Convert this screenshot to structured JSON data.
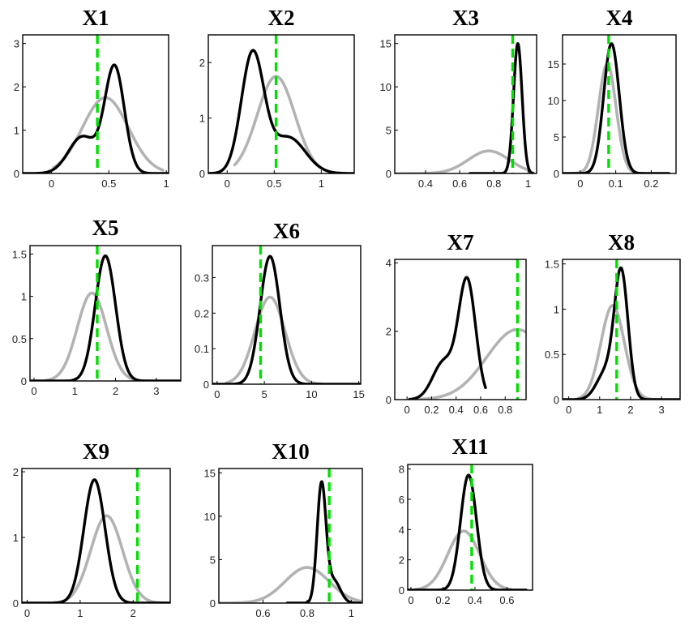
{
  "colors": {
    "prior": "#b3b3b3",
    "posterior": "#000000",
    "true_value": "#00e000"
  },
  "chart_data": [
    {
      "type": "line",
      "title": "X1",
      "xlim": [
        -0.25,
        1.02
      ],
      "ylim": [
        0,
        3.2
      ],
      "xticks": [
        {
          "v": 0,
          "label": "0"
        },
        {
          "v": 0.5,
          "label": "0.5"
        },
        {
          "v": 1,
          "label": "1"
        }
      ],
      "yticks": [
        {
          "v": 0,
          "label": "0"
        },
        {
          "v": 1,
          "label": "1"
        },
        {
          "v": 2,
          "label": "2"
        },
        {
          "v": 3,
          "label": "3"
        }
      ],
      "vline": 0.4,
      "series": [
        {
          "role": "prior",
          "components": [
            {
              "m": 0.47,
              "s": 0.2,
              "a": 1.75
            }
          ],
          "range": [
            0.02,
            0.97
          ]
        },
        {
          "role": "posterior",
          "components": [
            {
              "m": 0.55,
              "s": 0.085,
              "a": 2.45
            },
            {
              "m": 0.27,
              "s": 0.12,
              "a": 0.85
            }
          ],
          "range": [
            -0.25,
            1.02
          ]
        }
      ]
    },
    {
      "type": "line",
      "title": "X2",
      "xlim": [
        -0.2,
        1.35
      ],
      "ylim": [
        0,
        2.5
      ],
      "xticks": [
        {
          "v": 0,
          "label": "0"
        },
        {
          "v": 0.5,
          "label": "0.5"
        },
        {
          "v": 1,
          "label": "1"
        }
      ],
      "yticks": [
        {
          "v": 0,
          "label": "0"
        },
        {
          "v": 1,
          "label": "1"
        },
        {
          "v": 2,
          "label": "2"
        }
      ],
      "vline": 0.52,
      "series": [
        {
          "role": "prior",
          "components": [
            {
              "m": 0.52,
              "s": 0.2,
              "a": 1.75
            }
          ],
          "range": [
            0.08,
            1.0
          ]
        },
        {
          "role": "posterior",
          "components": [
            {
              "m": 0.27,
              "s": 0.12,
              "a": 2.15
            },
            {
              "m": 0.65,
              "s": 0.18,
              "a": 0.65
            }
          ],
          "range": [
            -0.2,
            1.35
          ]
        }
      ]
    },
    {
      "type": "line",
      "title": "X3",
      "xlim": [
        0.22,
        1.05
      ],
      "ylim": [
        0,
        16
      ],
      "xticks": [
        {
          "v": 0.4,
          "label": "0.4"
        },
        {
          "v": 0.6,
          "label": "0.6"
        },
        {
          "v": 0.8,
          "label": "0.8"
        },
        {
          "v": 1,
          "label": "1"
        }
      ],
      "yticks": [
        {
          "v": 0,
          "label": "0"
        },
        {
          "v": 5,
          "label": "5"
        },
        {
          "v": 10,
          "label": "10"
        },
        {
          "v": 15,
          "label": "15"
        }
      ],
      "vline": 0.91,
      "series": [
        {
          "role": "prior",
          "components": [
            {
              "m": 0.77,
              "s": 0.12,
              "a": 2.6
            }
          ],
          "range": [
            0.22,
            1.0
          ]
        },
        {
          "role": "posterior",
          "components": [
            {
              "m": 0.94,
              "s": 0.025,
              "a": 15.0
            }
          ],
          "range": [
            0.66,
            1.03
          ]
        }
      ]
    },
    {
      "type": "line",
      "title": "X4",
      "xlim": [
        -0.05,
        0.27
      ],
      "ylim": [
        0,
        19
      ],
      "xticks": [
        {
          "v": 0,
          "label": "0"
        },
        {
          "v": 0.1,
          "label": "0.1"
        },
        {
          "v": 0.2,
          "label": "0.2"
        }
      ],
      "yticks": [
        {
          "v": 0,
          "label": "0"
        },
        {
          "v": 5,
          "label": "5"
        },
        {
          "v": 10,
          "label": "10"
        },
        {
          "v": 15,
          "label": "15"
        }
      ],
      "vline": 0.08,
      "series": [
        {
          "role": "prior",
          "components": [
            {
              "m": 0.076,
              "s": 0.025,
              "a": 15.0
            }
          ],
          "range": [
            -0.02,
            0.18
          ]
        },
        {
          "role": "posterior",
          "components": [
            {
              "m": 0.088,
              "s": 0.022,
              "a": 17.8
            }
          ],
          "range": [
            -0.05,
            0.25
          ]
        }
      ]
    },
    {
      "type": "line",
      "title": "X5",
      "xlim": [
        -0.1,
        3.6
      ],
      "ylim": [
        0,
        1.6
      ],
      "xticks": [
        {
          "v": 0,
          "label": "0"
        },
        {
          "v": 1,
          "label": "1"
        },
        {
          "v": 2,
          "label": "2"
        },
        {
          "v": 3,
          "label": "3"
        }
      ],
      "yticks": [
        {
          "v": 0,
          "label": "0"
        },
        {
          "v": 0.5,
          "label": "0.5"
        },
        {
          "v": 1,
          "label": "1"
        },
        {
          "v": 1.5,
          "label": "1.5"
        }
      ],
      "vline": 1.55,
      "series": [
        {
          "role": "prior",
          "components": [
            {
              "m": 1.42,
              "s": 0.36,
              "a": 1.04
            }
          ],
          "range": [
            0.3,
            3.0
          ]
        },
        {
          "role": "posterior",
          "components": [
            {
              "m": 1.75,
              "s": 0.25,
              "a": 1.48
            }
          ],
          "range": [
            -0.1,
            3.6
          ]
        }
      ]
    },
    {
      "type": "line",
      "title": "X6",
      "xlim": [
        -0.5,
        15.2
      ],
      "ylim": [
        0,
        0.39
      ],
      "xticks": [
        {
          "v": 0,
          "label": "0"
        },
        {
          "v": 5,
          "label": "5"
        },
        {
          "v": 10,
          "label": "10"
        },
        {
          "v": 15,
          "label": "15"
        }
      ],
      "yticks": [
        {
          "v": 0,
          "label": "0"
        },
        {
          "v": 0.1,
          "label": "0.1"
        },
        {
          "v": 0.2,
          "label": "0.2"
        },
        {
          "v": 0.3,
          "label": "0.3"
        }
      ],
      "vline": 4.6,
      "series": [
        {
          "role": "prior",
          "components": [
            {
              "m": 5.6,
              "s": 1.6,
              "a": 0.245
            }
          ],
          "range": [
            1.0,
            11.0
          ]
        },
        {
          "role": "posterior",
          "components": [
            {
              "m": 5.6,
              "s": 1.05,
              "a": 0.36
            }
          ],
          "range": [
            -0.5,
            15.2
          ]
        }
      ]
    },
    {
      "type": "line",
      "title": "X7",
      "xlim": [
        -0.1,
        0.97
      ],
      "ylim": [
        0,
        4.1
      ],
      "xticks": [
        {
          "v": 0,
          "label": "0"
        },
        {
          "v": 0.2,
          "label": "0.2"
        },
        {
          "v": 0.4,
          "label": "0.4"
        },
        {
          "v": 0.6,
          "label": "0.6"
        },
        {
          "v": 0.8,
          "label": "0.8"
        }
      ],
      "yticks": [
        {
          "v": 0,
          "label": "0"
        },
        {
          "v": 2,
          "label": "2"
        },
        {
          "v": 4,
          "label": "4"
        }
      ],
      "vline": 0.9,
      "series": [
        {
          "role": "prior",
          "components": [
            {
              "m": 0.9,
              "s": 0.25,
              "a": 2.05
            }
          ],
          "range": [
            0.08,
            0.97
          ]
        },
        {
          "role": "posterior",
          "components": [
            {
              "m": 0.49,
              "s": 0.07,
              "a": 3.45
            },
            {
              "m": 0.3,
              "s": 0.09,
              "a": 1.1
            }
          ],
          "range": [
            0.02,
            0.64
          ]
        }
      ]
    },
    {
      "type": "line",
      "title": "X8",
      "xlim": [
        -0.2,
        3.6
      ],
      "ylim": [
        0,
        1.55
      ],
      "xticks": [
        {
          "v": 0,
          "label": "0"
        },
        {
          "v": 1,
          "label": "1"
        },
        {
          "v": 2,
          "label": "2"
        },
        {
          "v": 3,
          "label": "3"
        }
      ],
      "yticks": [
        {
          "v": 0,
          "label": "0"
        },
        {
          "v": 0.5,
          "label": "0.5"
        },
        {
          "v": 1,
          "label": "1"
        },
        {
          "v": 1.5,
          "label": "1.5"
        }
      ],
      "vline": 1.55,
      "series": [
        {
          "role": "prior",
          "components": [
            {
              "m": 1.42,
              "s": 0.38,
              "a": 1.04
            }
          ],
          "range": [
            0.3,
            3.0
          ]
        },
        {
          "role": "posterior",
          "components": [
            {
              "m": 1.7,
              "s": 0.22,
              "a": 1.38
            },
            {
              "m": 1.2,
              "s": 0.3,
              "a": 0.3
            }
          ],
          "range": [
            -0.2,
            3.6
          ]
        }
      ]
    },
    {
      "type": "line",
      "title": "X9",
      "xlim": [
        -0.1,
        2.7
      ],
      "ylim": [
        0,
        2.05
      ],
      "xticks": [
        {
          "v": 0,
          "label": "0"
        },
        {
          "v": 1,
          "label": "1"
        },
        {
          "v": 2,
          "label": "2"
        }
      ],
      "yticks": [
        {
          "v": 0,
          "label": "0"
        },
        {
          "v": 1,
          "label": "1"
        },
        {
          "v": 2,
          "label": "2"
        }
      ],
      "vline": 2.08,
      "series": [
        {
          "role": "prior",
          "components": [
            {
              "m": 1.5,
              "s": 0.3,
              "a": 1.33
            }
          ],
          "range": [
            0.5,
            2.7
          ]
        },
        {
          "role": "posterior",
          "components": [
            {
              "m": 1.27,
              "s": 0.2,
              "a": 1.88
            }
          ],
          "range": [
            -0.1,
            2.7
          ]
        }
      ]
    },
    {
      "type": "line",
      "title": "X10",
      "xlim": [
        0.4,
        1.05
      ],
      "ylim": [
        0,
        15.5
      ],
      "xticks": [
        {
          "v": 0.6,
          "label": "0.6"
        },
        {
          "v": 0.8,
          "label": "0.8"
        },
        {
          "v": 1,
          "label": "1"
        }
      ],
      "yticks": [
        {
          "v": 0,
          "label": "0"
        },
        {
          "v": 5,
          "label": "5"
        },
        {
          "v": 10,
          "label": "10"
        },
        {
          "v": 15,
          "label": "15"
        }
      ],
      "vline": 0.9,
      "series": [
        {
          "role": "prior",
          "components": [
            {
              "m": 0.8,
              "s": 0.1,
              "a": 4.1
            }
          ],
          "range": [
            0.4,
            1.05
          ]
        },
        {
          "role": "posterior",
          "components": [
            {
              "m": 0.865,
              "s": 0.02,
              "a": 13.5
            },
            {
              "m": 0.92,
              "s": 0.03,
              "a": 2.6
            }
          ],
          "range": [
            0.71,
            1.04
          ]
        }
      ]
    },
    {
      "type": "line",
      "title": "X11",
      "xlim": [
        -0.02,
        0.76
      ],
      "ylim": [
        0,
        8.3
      ],
      "xticks": [
        {
          "v": 0,
          "label": "0"
        },
        {
          "v": 0.2,
          "label": "0.2"
        },
        {
          "v": 0.4,
          "label": "0.4"
        },
        {
          "v": 0.6,
          "label": "0.6"
        }
      ],
      "yticks": [
        {
          "v": 0,
          "label": "0"
        },
        {
          "v": 2,
          "label": "2"
        },
        {
          "v": 4,
          "label": "4"
        },
        {
          "v": 6,
          "label": "6"
        },
        {
          "v": 8,
          "label": "8"
        }
      ],
      "vline": 0.38,
      "series": [
        {
          "role": "prior",
          "components": [
            {
              "m": 0.33,
              "s": 0.1,
              "a": 3.9
            }
          ],
          "range": [
            0.03,
            0.62
          ]
        },
        {
          "role": "posterior",
          "components": [
            {
              "m": 0.36,
              "s": 0.05,
              "a": 7.6
            }
          ],
          "range": [
            -0.02,
            0.72
          ]
        }
      ]
    }
  ]
}
